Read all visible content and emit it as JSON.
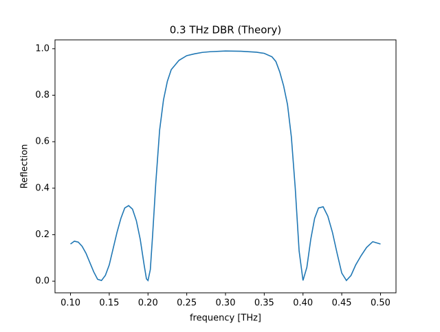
{
  "chart_data": {
    "type": "line",
    "title": "0.3 THz DBR (Theory)",
    "x_label": "frequency [THz]",
    "y_label": "Reflection",
    "x": [
      0.1,
      0.105,
      0.11,
      0.115,
      0.12,
      0.125,
      0.13,
      0.135,
      0.14,
      0.145,
      0.15,
      0.155,
      0.16,
      0.165,
      0.17,
      0.175,
      0.18,
      0.185,
      0.19,
      0.195,
      0.198,
      0.2,
      0.203,
      0.206,
      0.21,
      0.215,
      0.22,
      0.225,
      0.23,
      0.24,
      0.25,
      0.26,
      0.27,
      0.28,
      0.3,
      0.32,
      0.34,
      0.35,
      0.36,
      0.365,
      0.37,
      0.375,
      0.38,
      0.385,
      0.39,
      0.395,
      0.4,
      0.405,
      0.41,
      0.415,
      0.42,
      0.426,
      0.432,
      0.438,
      0.444,
      0.45,
      0.456,
      0.462,
      0.468,
      0.475,
      0.482,
      0.49,
      0.5
    ],
    "series": [
      {
        "name": "Reflection",
        "color": "#1f77b4",
        "values": [
          0.16,
          0.172,
          0.168,
          0.15,
          0.12,
          0.08,
          0.04,
          0.008,
          0.003,
          0.025,
          0.07,
          0.14,
          0.21,
          0.27,
          0.315,
          0.325,
          0.31,
          0.26,
          0.18,
          0.07,
          0.01,
          0.003,
          0.05,
          0.2,
          0.42,
          0.65,
          0.78,
          0.86,
          0.91,
          0.95,
          0.97,
          0.978,
          0.984,
          0.987,
          0.99,
          0.989,
          0.985,
          0.98,
          0.965,
          0.945,
          0.9,
          0.84,
          0.76,
          0.62,
          0.4,
          0.13,
          0.003,
          0.06,
          0.18,
          0.27,
          0.315,
          0.32,
          0.28,
          0.21,
          0.12,
          0.035,
          0.003,
          0.025,
          0.07,
          0.11,
          0.145,
          0.17,
          0.16
        ]
      }
    ],
    "xlim": [
      0.08,
      0.52
    ],
    "xticks": [
      {
        "value": 0.1,
        "label": "0.10"
      },
      {
        "value": 0.15,
        "label": "0.15"
      },
      {
        "value": 0.2,
        "label": "0.20"
      },
      {
        "value": 0.25,
        "label": "0.25"
      },
      {
        "value": 0.3,
        "label": "0.30"
      },
      {
        "value": 0.35,
        "label": "0.35"
      },
      {
        "value": 0.4,
        "label": "0.40"
      },
      {
        "value": 0.45,
        "label": "0.45"
      },
      {
        "value": 0.5,
        "label": "0.50"
      }
    ],
    "ylim": [
      -0.05,
      1.038
    ],
    "yticks": [
      {
        "value": 0,
        "label": "0.0"
      },
      {
        "value": 0.2,
        "label": "0.2"
      },
      {
        "value": 0.4,
        "label": "0.4"
      },
      {
        "value": 0.6,
        "label": "0.6"
      },
      {
        "value": 0.8,
        "label": "0.8"
      },
      {
        "value": 1,
        "label": "1.0"
      }
    ],
    "grid": false
  }
}
